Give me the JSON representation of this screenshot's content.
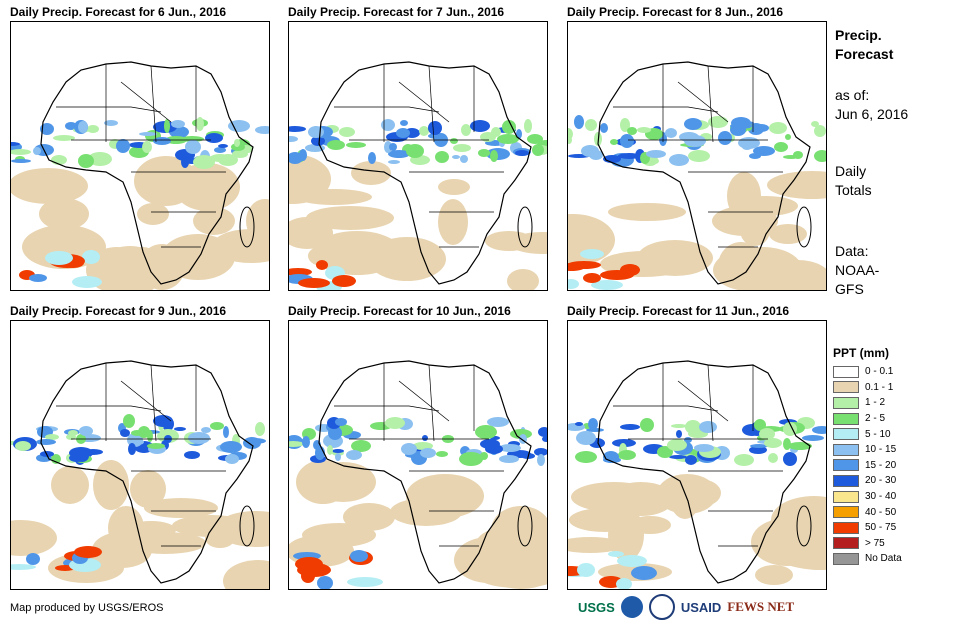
{
  "panels": [
    {
      "title": "Daily Precip. Forecast for 6 Jun., 2016"
    },
    {
      "title": "Daily Precip. Forecast for 7 Jun., 2016"
    },
    {
      "title": "Daily Precip. Forecast for 8 Jun., 2016"
    },
    {
      "title": "Daily Precip. Forecast for 9 Jun., 2016"
    },
    {
      "title": "Daily Precip. Forecast for 10 Jun., 2016"
    },
    {
      "title": "Daily Precip. Forecast for 11 Jun., 2016"
    }
  ],
  "side": {
    "heading1": "Precip.",
    "heading2": "Forecast",
    "asof1": "as of:",
    "asof2": "Jun 6, 2016",
    "totals1": "Daily",
    "totals2": "Totals",
    "data1": "Data:",
    "data2": "NOAA-",
    "data3": "GFS"
  },
  "legend": {
    "title": "PPT (mm)",
    "items": [
      {
        "label": "0 - 0.1",
        "color": "#ffffff"
      },
      {
        "label": "0.1 - 1",
        "color": "#e8d4b0"
      },
      {
        "label": "1 - 2",
        "color": "#b4f0a8"
      },
      {
        "label": "2 - 5",
        "color": "#78e070"
      },
      {
        "label": "5 - 10",
        "color": "#b4eef4"
      },
      {
        "label": "10 - 15",
        "color": "#8cc0f0"
      },
      {
        "label": "15 - 20",
        "color": "#5096e8"
      },
      {
        "label": "20 - 30",
        "color": "#1e5adc"
      },
      {
        "label": "30 - 40",
        "color": "#fae68c"
      },
      {
        "label": "40 - 50",
        "color": "#f5a000"
      },
      {
        "label": "50 - 75",
        "color": "#f03c00"
      },
      {
        "label": "> 75",
        "color": "#b41e1e"
      },
      {
        "label": "No Data",
        "color": "#969696"
      }
    ]
  },
  "credit": "Map produced by USGS/EROS",
  "logos": {
    "usgs": "USGS",
    "usaid": "USAID",
    "fewsnet": "FEWS NET"
  }
}
